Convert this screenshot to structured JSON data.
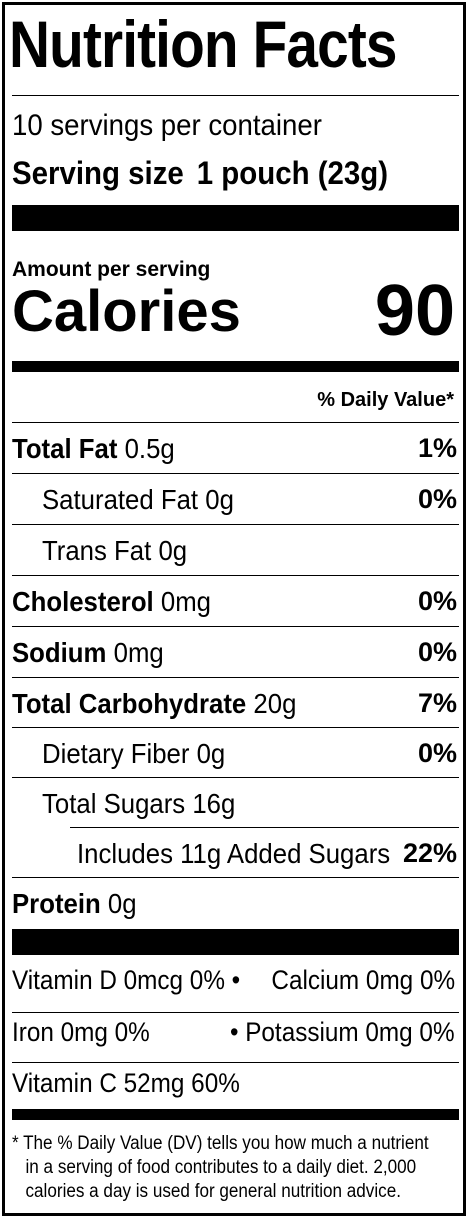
{
  "title": "Nutrition Facts",
  "servings_per_container": "10 servings per container",
  "serving_size": {
    "label": "Serving size",
    "value": "1 pouch (23g)"
  },
  "amount_per_serving": "Amount per serving",
  "calories": {
    "label": "Calories",
    "value": "90"
  },
  "daily_value_header": "% Daily Value*",
  "nutrients": [
    {
      "name": "Total Fat",
      "amount": "0.5g",
      "dv": "1%"
    },
    {
      "name": "Saturated Fat",
      "amount": "0g",
      "dv": "0%"
    },
    {
      "name": "Trans Fat",
      "amount": "0g",
      "dv": ""
    },
    {
      "name": "Cholesterol",
      "amount": "0mg",
      "dv": "0%"
    },
    {
      "name": "Sodium",
      "amount": "0mg",
      "dv": "0%"
    },
    {
      "name": "Total Carbohydrate",
      "amount": "20g",
      "dv": "7%"
    },
    {
      "name": "Dietary Fiber",
      "amount": "0g",
      "dv": "0%"
    },
    {
      "name": "Total Sugars",
      "amount": "16g",
      "dv": ""
    },
    {
      "name": "Includes 11g Added Sugars",
      "amount": "",
      "dv": "22%"
    },
    {
      "name": "Protein",
      "amount": "0g",
      "dv": ""
    }
  ],
  "vitamins": {
    "vitamin_d": "Vitamin D 0mcg 0% •",
    "calcium": "Calcium 0mg 0%",
    "iron": "Iron 0mg 0%",
    "potassium": "• Potassium 0mg 0%",
    "vitamin_c": "Vitamin C 52mg 60%"
  },
  "footnote": {
    "line1": "* The % Daily Value (DV) tells you how much a nutrient",
    "line2": "in a serving of food contributes to a daily diet. 2,000",
    "line3": "calories a day is used for general nutrition advice."
  }
}
